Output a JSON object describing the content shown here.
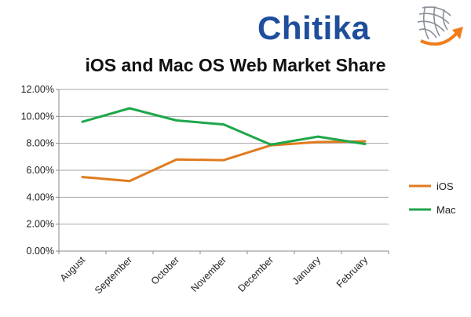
{
  "logo": {
    "text": "Chitika",
    "brand_color": "#1f4e9c",
    "accent_color": "#f07d1d",
    "icon": "globe-arrow-icon"
  },
  "chart_data": {
    "type": "line",
    "title": "iOS and Mac OS Web Market Share",
    "categories": [
      "August",
      "September",
      "October",
      "November",
      "December",
      "January",
      "February"
    ],
    "series": [
      {
        "name": "iOS",
        "color": "#e07b1f",
        "values": [
          5.5,
          5.2,
          6.8,
          6.75,
          7.85,
          8.1,
          8.15
        ]
      },
      {
        "name": "Mac",
        "color": "#1ea64b",
        "values": [
          9.6,
          10.6,
          9.7,
          9.4,
          7.9,
          8.5,
          7.95
        ]
      }
    ],
    "ylim": [
      0,
      12
    ],
    "yticks": [
      "0.00%",
      "2.00%",
      "4.00%",
      "6.00%",
      "8.00%",
      "10.00%",
      "12.00%"
    ],
    "grid": true,
    "legend": "right"
  }
}
